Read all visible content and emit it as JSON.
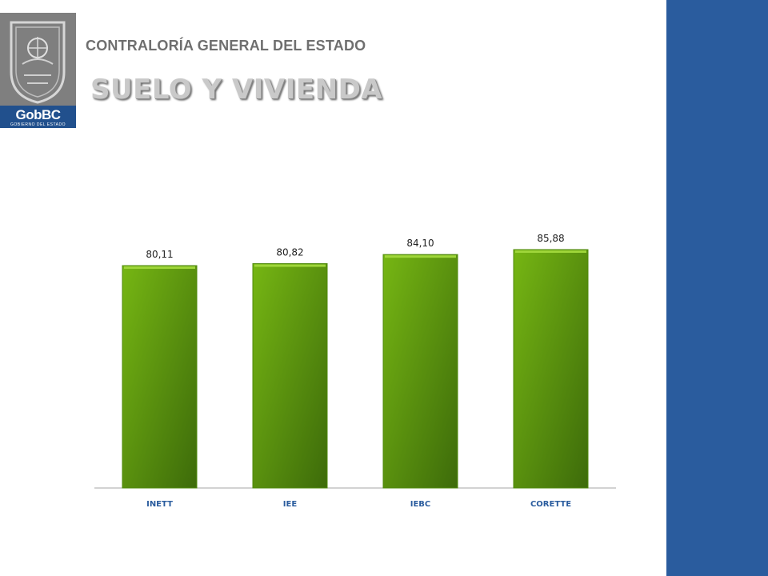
{
  "header": {
    "org_title": "CONTRALORÍA GENERAL DEL ESTADO",
    "page_title": "SUELO Y VIVIENDA"
  },
  "logo": {
    "brand": "GobBC",
    "subtitle": "GOBIERNO DEL ESTADO"
  },
  "colors": {
    "bar_light": "#76b613",
    "bar_dark": "#3d6b0a",
    "side_panel": "#2a5c9e",
    "category_text": "#2a5c9e"
  },
  "chart_data": {
    "type": "bar",
    "categories": [
      "INETT",
      "IEE",
      "IEBC",
      "CORETTE"
    ],
    "values": [
      80.11,
      80.82,
      84.1,
      85.88
    ],
    "value_labels": [
      "80,11",
      "80,82",
      "84,10",
      "85,88"
    ],
    "title": "",
    "xlabel": "",
    "ylabel": "",
    "grid": false,
    "legend": "none"
  }
}
